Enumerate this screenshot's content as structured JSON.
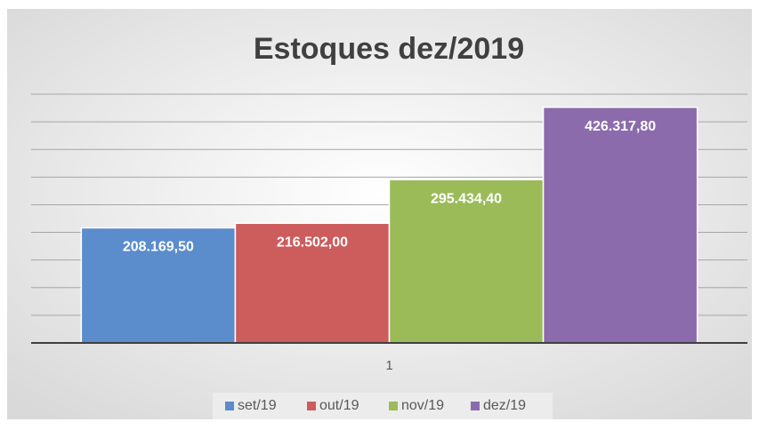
{
  "chart_data": {
    "type": "bar",
    "title": "Estoques dez/2019",
    "categories": [
      "1"
    ],
    "series": [
      {
        "name": "set/19",
        "color": "#5b8ccb",
        "values": [
          208169.5
        ],
        "value_labels": [
          "208.169,50"
        ]
      },
      {
        "name": "out/19",
        "color": "#cd5c5c",
        "values": [
          216502.0
        ],
        "value_labels": [
          "216.502,00"
        ]
      },
      {
        "name": "nov/19",
        "color": "#9bbb59",
        "values": [
          295434.4
        ],
        "value_labels": [
          "295.434,40"
        ]
      },
      {
        "name": "dez/19",
        "color": "#8b6bab",
        "values": [
          426317.8
        ],
        "value_labels": [
          "426.317,80"
        ]
      }
    ],
    "ylim": [
      0,
      450000
    ],
    "yticks": [
      0,
      50000,
      100000,
      150000,
      200000,
      250000,
      300000,
      350000,
      400000,
      450000
    ],
    "grid": true,
    "legend": "bottom"
  }
}
